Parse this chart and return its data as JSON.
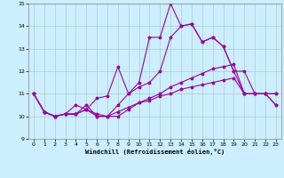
{
  "xlabel": "Windchill (Refroidissement éolien,°C)",
  "hours": [
    0,
    1,
    2,
    3,
    4,
    5,
    6,
    7,
    8,
    9,
    10,
    11,
    12,
    13,
    14,
    15,
    16,
    17,
    18,
    19,
    20,
    21,
    22,
    23
  ],
  "line1": [
    11.0,
    10.2,
    10.0,
    10.1,
    10.5,
    10.3,
    10.8,
    10.9,
    12.2,
    11.0,
    11.5,
    13.5,
    13.5,
    15.0,
    14.0,
    14.1,
    13.3,
    13.5,
    13.1,
    12.0,
    12.0,
    11.0,
    11.0,
    10.5
  ],
  "line2": [
    11.0,
    10.2,
    10.0,
    10.1,
    10.1,
    10.3,
    10.1,
    10.0,
    10.5,
    11.0,
    11.3,
    11.5,
    12.0,
    13.5,
    14.0,
    14.1,
    13.3,
    13.5,
    13.1,
    12.0,
    11.0,
    11.0,
    11.0,
    10.5
  ],
  "line3": [
    11.0,
    10.2,
    10.0,
    10.1,
    10.1,
    10.5,
    10.0,
    10.0,
    10.0,
    10.3,
    10.6,
    10.8,
    11.0,
    11.3,
    11.5,
    11.7,
    11.9,
    12.1,
    12.2,
    12.3,
    11.0,
    11.0,
    11.0,
    11.0
  ],
  "line4": [
    11.0,
    10.2,
    10.0,
    10.1,
    10.1,
    10.3,
    10.0,
    10.0,
    10.2,
    10.4,
    10.6,
    10.7,
    10.9,
    11.0,
    11.2,
    11.3,
    11.4,
    11.5,
    11.6,
    11.7,
    11.0,
    11.0,
    11.0,
    11.0
  ],
  "line_color": "#990099",
  "bg_color": "#cceeff",
  "grid_color": "#aacccc",
  "ylim": [
    9,
    15
  ],
  "xlim": [
    -0.5,
    23.5
  ],
  "yticks": [
    9,
    10,
    11,
    12,
    13,
    14,
    15
  ],
  "xticks": [
    0,
    1,
    2,
    3,
    4,
    5,
    6,
    7,
    8,
    9,
    10,
    11,
    12,
    13,
    14,
    15,
    16,
    17,
    18,
    19,
    20,
    21,
    22,
    23
  ]
}
